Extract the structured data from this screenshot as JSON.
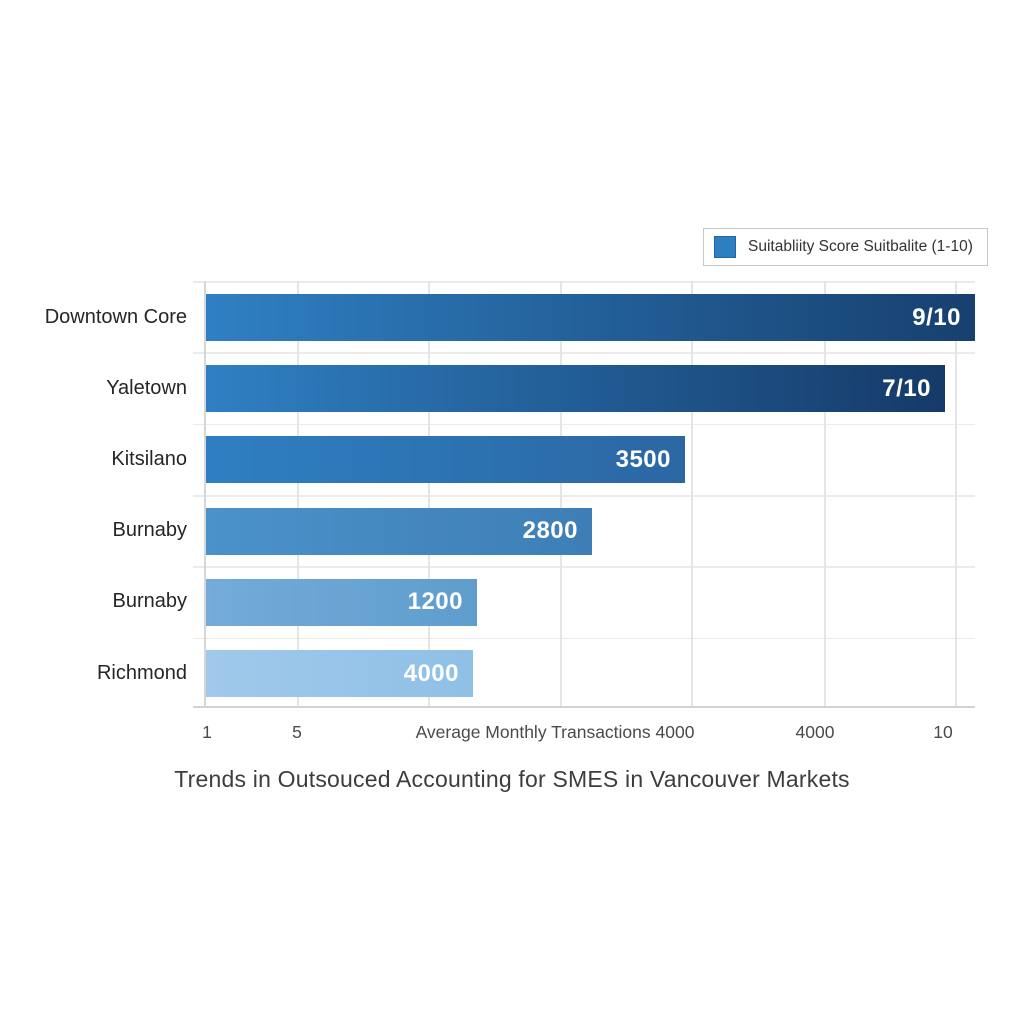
{
  "chart_data": {
    "type": "bar",
    "orientation": "horizontal",
    "title": "Trends in Outsouced Accounting for SMES in Vancouver Markets",
    "legend_label": "Suitabliity Score Suitbalite (1-10)",
    "legend_swatch_color": "#2d7fc1",
    "legend_position": "top-right",
    "grid": true,
    "xlim": [
      1,
      10
    ],
    "x_tick_labels": [
      "1",
      "5",
      "Average Monthly Transactions 4000",
      "4000",
      "10"
    ],
    "categories": [
      "Downtown Core",
      "Yaletown",
      "Kitsilano",
      "Burnaby",
      "Burnaby",
      "Richmond"
    ],
    "bars": [
      {
        "category": "Downtown Core",
        "label": "9/10",
        "length_fraction": 1.0,
        "color_start": "#2f80c3",
        "color_end": "#17406f"
      },
      {
        "category": "Yaletown",
        "label": "7/10",
        "length_fraction": 0.961,
        "color_start": "#2f80c3",
        "color_end": "#153a68"
      },
      {
        "category": "Kitsilano",
        "label": "3500",
        "length_fraction": 0.623,
        "color_start": "#2e7fc2",
        "color_end": "#2b67a3"
      },
      {
        "category": "Burnaby",
        "label": "2800",
        "length_fraction": 0.503,
        "color_start": "#4c92ca",
        "color_end": "#3d7eb6"
      },
      {
        "category": "Burnaby",
        "label": "1200",
        "length_fraction": 0.353,
        "color_start": "#74abd9",
        "color_end": "#5f9dcd"
      },
      {
        "category": "Richmond",
        "label": "4000",
        "length_fraction": 0.348,
        "color_start": "#a0c9eb",
        "color_end": "#8fc0e6"
      }
    ]
  }
}
